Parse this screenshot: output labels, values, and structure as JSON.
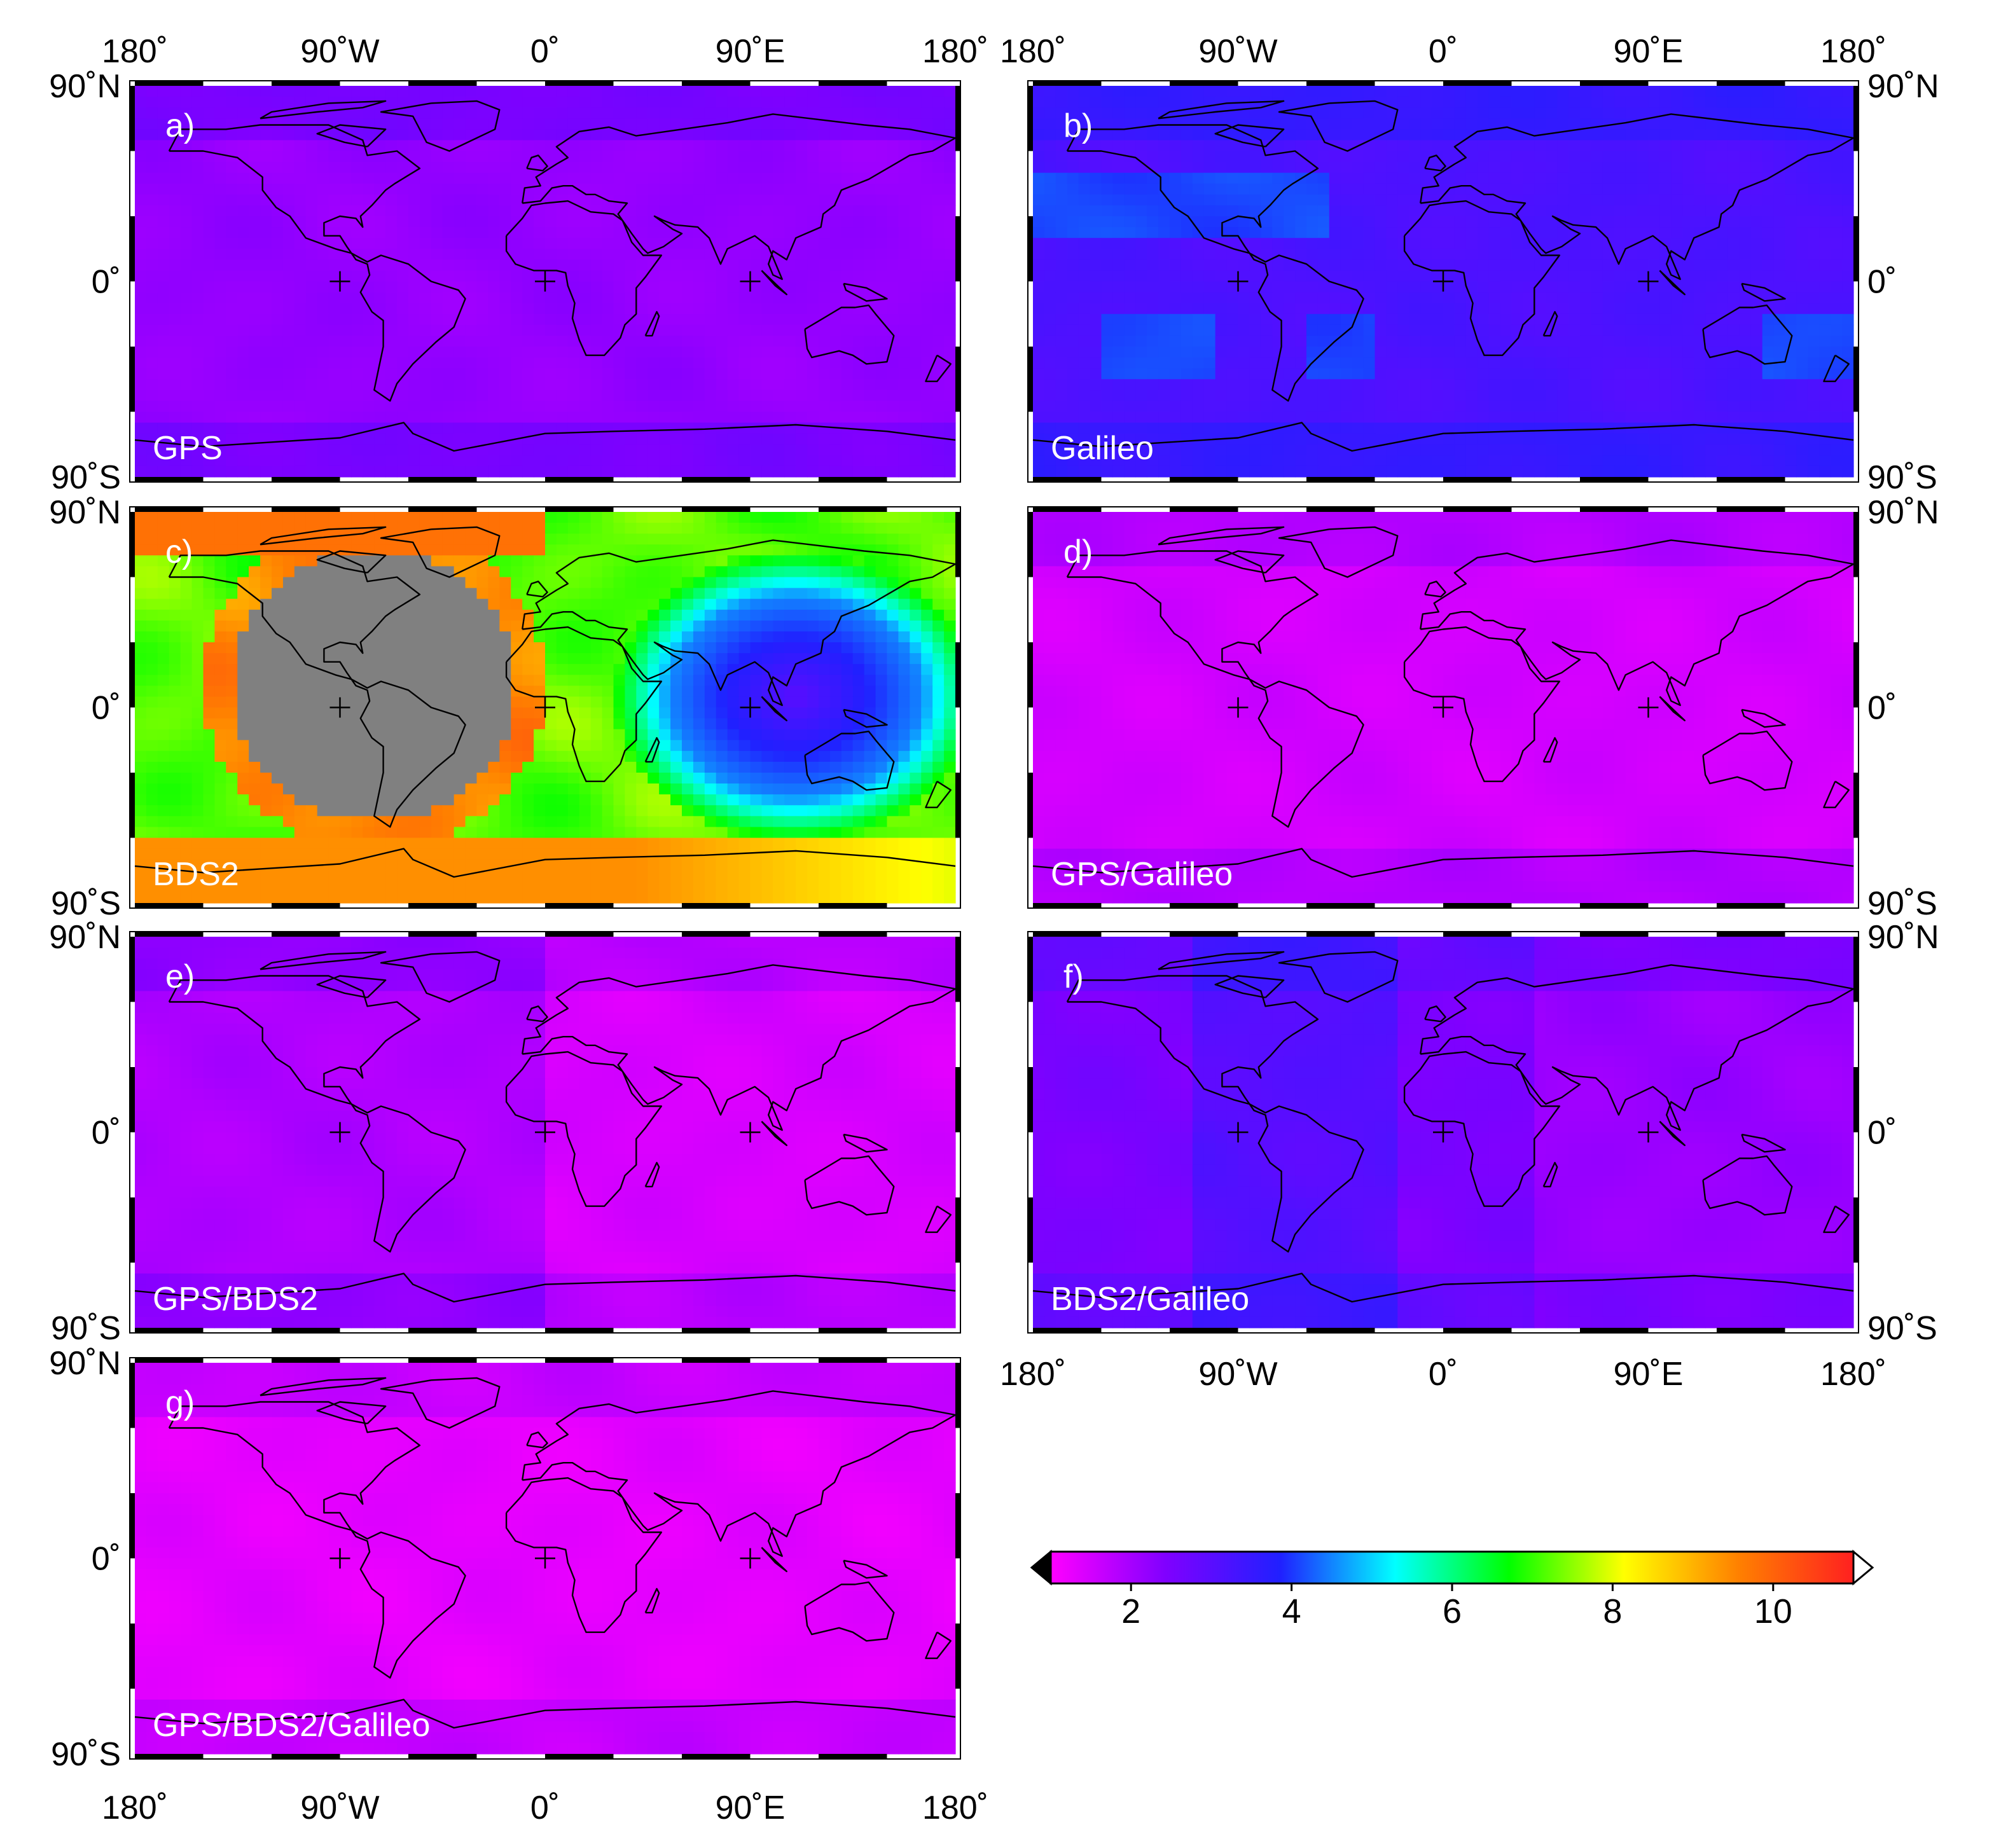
{
  "lon_labels": [
    "180˚",
    "90˚W",
    "0˚",
    "90˚E",
    "180˚"
  ],
  "lat_labels": [
    "90˚N",
    "0˚",
    "90˚S"
  ],
  "panels": [
    {
      "letter": "a)",
      "name": "GPS",
      "base": 2.2,
      "bds_pattern": false
    },
    {
      "letter": "b)",
      "name": "Galileo",
      "base": 3.2,
      "bds_pattern": false
    },
    {
      "letter": "c)",
      "name": "BDS2",
      "base": 7.5,
      "bds_pattern": true
    },
    {
      "letter": "d)",
      "name": "GPS/Galileo",
      "base": 1.5,
      "bds_pattern": false
    },
    {
      "letter": "e)",
      "name": "GPS/BDS2",
      "base": 1.9,
      "bds_pattern": false
    },
    {
      "letter": "f)",
      "name": "BDS2/Galileo",
      "base": 2.5,
      "bds_pattern": false
    },
    {
      "letter": "g)",
      "name": "GPS/BDS2/Galileo",
      "base": 1.3,
      "bds_pattern": false
    }
  ],
  "colorbar": {
    "min": 1,
    "max": 11,
    "ticks": [
      "2",
      "4",
      "6",
      "8",
      "10"
    ],
    "tick_values": [
      2,
      4,
      6,
      8,
      10
    ],
    "colors": [
      "#ff00ff",
      "#8000ff",
      "#2020ff",
      "#00ffff",
      "#00ff00",
      "#ffff00",
      "#ff8000",
      "#ff2020"
    ],
    "nan_color": "#808080"
  }
}
